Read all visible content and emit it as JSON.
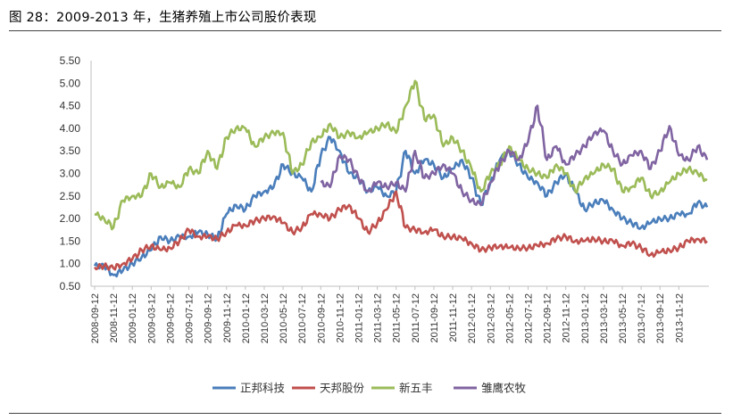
{
  "figure": {
    "title": "图 28：2009-2013 年，生猪养殖上市公司股价表现"
  },
  "chart_data": {
    "type": "line",
    "title": "",
    "xlabel": "",
    "ylabel": "",
    "ylim": [
      0.5,
      5.5
    ],
    "yticks": [
      "5.50",
      "5.00",
      "4.50",
      "4.00",
      "3.50",
      "3.00",
      "2.50",
      "2.00",
      "1.50",
      "1.00",
      "0.50"
    ],
    "x_tick_labels": [
      "2008-09-12",
      "2008-11-12",
      "2009-01-12",
      "2009-03-12",
      "2009-05-12",
      "2009-07-12",
      "2009-09-12",
      "2009-11-12",
      "2010-01-12",
      "2010-03-12",
      "2010-05-12",
      "2010-07-12",
      "2010-09-12",
      "2010-11-12",
      "2011-01-12",
      "2011-03-12",
      "2011-05-12",
      "2011-07-12",
      "2011-09-12",
      "2011-11-12",
      "2012-01-12",
      "2012-03-12",
      "2012-05-12",
      "2012-07-12",
      "2012-09-12",
      "2012-11-12",
      "2013-01-12",
      "2013-03-12",
      "2013-05-12",
      "2013-07-12",
      "2013-09-12",
      "2013-11-12"
    ],
    "grid": false,
    "legend_position": "bottom",
    "series": [
      {
        "name": "正邦科技",
        "color": "#4a7ebb",
        "x": [
          0,
          0.5,
          1,
          1.5,
          2,
          2.5,
          3,
          3.5,
          4,
          4.5,
          5,
          5.5,
          6,
          6.5,
          7,
          7.5,
          8,
          8.5,
          9,
          9.5,
          10,
          10.5,
          11,
          11.5,
          12,
          12.5,
          13,
          13.5,
          14,
          14.5,
          15,
          15.5,
          16,
          16.5,
          17,
          17.5,
          18,
          18.5,
          19,
          19.5,
          20,
          20.5,
          21,
          21.5,
          22,
          22.5,
          23,
          23.5,
          24,
          24.5,
          25,
          25.5,
          26,
          26.5,
          27,
          27.5,
          28,
          28.5,
          29,
          29.5,
          30,
          30.5,
          31,
          31.5,
          32,
          32.5
        ],
        "values": [
          0.95,
          0.95,
          0.75,
          0.85,
          1.0,
          1.15,
          1.3,
          1.6,
          1.5,
          1.6,
          1.6,
          1.7,
          1.65,
          1.55,
          2.1,
          2.3,
          2.2,
          2.5,
          2.6,
          2.7,
          3.2,
          3.0,
          2.9,
          2.6,
          3.4,
          3.8,
          3.5,
          3.0,
          2.9,
          2.6,
          2.7,
          2.5,
          2.6,
          3.5,
          3.0,
          3.3,
          3.2,
          2.9,
          3.1,
          3.3,
          2.9,
          2.3,
          2.8,
          3.3,
          3.5,
          3.2,
          2.9,
          2.8,
          2.5,
          2.8,
          3.0,
          2.6,
          2.2,
          2.35,
          2.4,
          2.2,
          2.0,
          1.9,
          1.8,
          1.9,
          2.0,
          2.0,
          2.1,
          2.1,
          2.35,
          2.25
        ]
      },
      {
        "name": "天邦股份",
        "color": "#c0504d",
        "x": [
          0,
          0.5,
          1,
          1.5,
          2,
          2.5,
          3,
          3.5,
          4,
          4.5,
          5,
          5.5,
          6,
          6.5,
          7,
          7.5,
          8,
          8.5,
          9,
          9.5,
          10,
          10.5,
          11,
          11.5,
          12,
          12.5,
          13,
          13.5,
          14,
          14.5,
          15,
          15.5,
          16,
          16.5,
          17,
          17.5,
          18,
          18.5,
          19,
          19.5,
          20,
          20.5,
          21,
          21.5,
          22,
          22.5,
          23,
          23.5,
          24,
          24.5,
          25,
          25.5,
          26,
          26.5,
          27,
          27.5,
          28,
          28.5,
          29,
          29.5,
          30,
          30.5,
          31,
          31.5,
          32,
          32.5
        ],
        "values": [
          0.92,
          0.95,
          0.9,
          1.0,
          1.1,
          1.3,
          1.4,
          1.3,
          1.35,
          1.5,
          1.75,
          1.6,
          1.6,
          1.55,
          1.7,
          1.85,
          1.85,
          1.95,
          2.0,
          2.05,
          1.9,
          1.7,
          1.8,
          2.1,
          2.1,
          2.0,
          2.2,
          2.3,
          2.0,
          1.7,
          1.9,
          2.2,
          2.6,
          1.8,
          1.75,
          1.7,
          1.75,
          1.6,
          1.6,
          1.55,
          1.45,
          1.3,
          1.35,
          1.4,
          1.35,
          1.35,
          1.35,
          1.4,
          1.45,
          1.55,
          1.6,
          1.5,
          1.5,
          1.55,
          1.5,
          1.5,
          1.4,
          1.45,
          1.35,
          1.2,
          1.25,
          1.3,
          1.35,
          1.5,
          1.55,
          1.5
        ]
      },
      {
        "name": "新五丰",
        "color": "#9bbb59",
        "x": [
          0,
          0.5,
          1,
          1.5,
          2,
          2.5,
          3,
          3.5,
          4,
          4.5,
          5,
          5.5,
          6,
          6.5,
          7,
          7.5,
          8,
          8.5,
          9,
          9.5,
          10,
          10.5,
          11,
          11.5,
          12,
          12.5,
          13,
          13.5,
          14,
          14.5,
          15,
          15.5,
          16,
          16.5,
          17,
          17.5,
          18,
          18.5,
          19,
          19.5,
          20,
          20.5,
          21,
          21.5,
          22,
          22.5,
          23,
          23.5,
          24,
          24.5,
          25,
          25.5,
          26,
          26.5,
          27,
          27.5,
          28,
          28.5,
          29,
          29.5,
          30,
          30.5,
          31,
          31.5,
          32,
          32.5
        ],
        "values": [
          2.1,
          2.0,
          1.8,
          2.4,
          2.5,
          2.5,
          3.0,
          2.7,
          2.8,
          2.7,
          3.1,
          3.0,
          3.5,
          3.1,
          3.8,
          4.0,
          4.0,
          3.6,
          3.8,
          3.9,
          3.9,
          3.0,
          3.2,
          3.7,
          3.8,
          4.1,
          3.8,
          3.9,
          3.8,
          3.9,
          4.0,
          4.1,
          3.9,
          4.5,
          5.05,
          4.2,
          4.3,
          3.6,
          3.8,
          3.5,
          3.1,
          2.6,
          3.0,
          3.2,
          3.6,
          3.3,
          3.1,
          3.0,
          2.9,
          3.2,
          3.0,
          2.6,
          2.9,
          3.0,
          3.2,
          3.1,
          2.6,
          2.7,
          2.9,
          2.5,
          2.6,
          2.8,
          3.0,
          3.1,
          3.0,
          2.85
        ]
      },
      {
        "name": "雏鹰农牧",
        "color": "#8064a2",
        "x": [
          12,
          12.5,
          13,
          13.5,
          14,
          14.5,
          15,
          15.5,
          16,
          16.5,
          17,
          17.5,
          18,
          18.5,
          19,
          19.5,
          20,
          20.5,
          21,
          21.5,
          22,
          22.5,
          23,
          23.5,
          24,
          24.5,
          25,
          25.5,
          26,
          26.5,
          27,
          27.5,
          28,
          28.5,
          29,
          29.5,
          30,
          30.5,
          31,
          31.5,
          32,
          32.5
        ],
        "values": [
          2.8,
          2.7,
          3.4,
          3.3,
          2.9,
          2.6,
          2.8,
          2.7,
          2.8,
          2.6,
          3.5,
          2.9,
          3.0,
          3.2,
          3.0,
          2.6,
          2.4,
          2.3,
          2.8,
          3.2,
          3.5,
          3.3,
          3.7,
          4.5,
          3.3,
          3.6,
          3.2,
          3.4,
          3.6,
          3.9,
          3.95,
          3.5,
          3.2,
          3.4,
          3.5,
          3.1,
          3.5,
          4.05,
          3.4,
          3.3,
          3.6,
          3.3
        ]
      }
    ]
  }
}
